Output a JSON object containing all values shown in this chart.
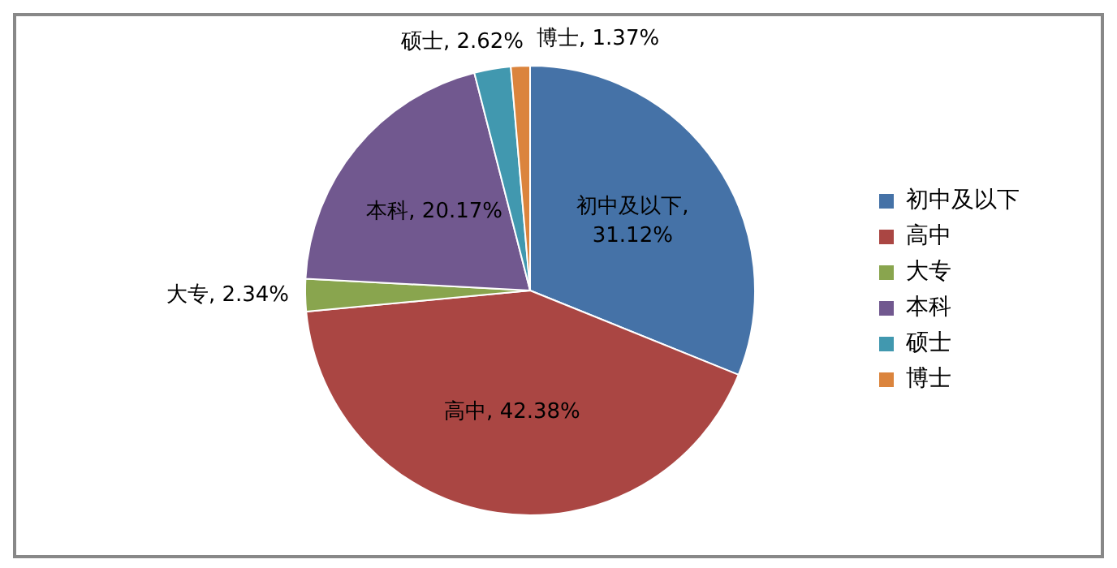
{
  "chart_data": {
    "type": "pie",
    "categories": [
      "初中及以下",
      "高中",
      "大专",
      "本科",
      "硕士",
      "博士"
    ],
    "values": [
      31.12,
      42.38,
      2.34,
      20.17,
      2.62,
      1.37
    ],
    "value_labels": [
      "初中及以下, 31.12%",
      "高中, 42.38%",
      "大专, 2.34%",
      "本科, 20.17%",
      "硕士, 2.62%",
      "博士, 1.37%"
    ],
    "colors": [
      "#4572a7",
      "#aa4643",
      "#89a54e",
      "#71588f",
      "#4198af",
      "#db843d"
    ],
    "legend": "right"
  }
}
